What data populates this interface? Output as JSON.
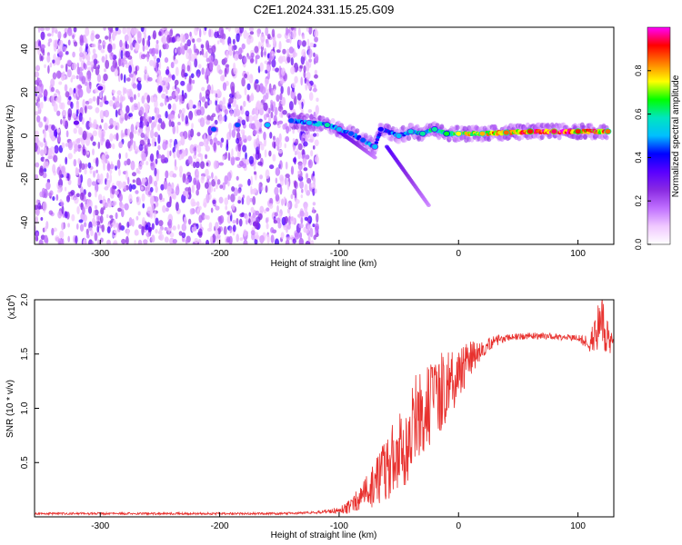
{
  "title": "C2E1.2024.331.15.25.G09",
  "chart_data": [
    {
      "type": "heatmap",
      "xlabel": "Height of straight line (km)",
      "ylabel": "Frequency (Hz)",
      "xlim": [
        -355,
        130
      ],
      "ylim": [
        -50,
        50
      ],
      "xticks": [
        -300,
        -200,
        -100,
        0,
        100
      ],
      "xtick_labels": [
        "-300",
        "-200",
        "-100",
        "0",
        "100"
      ],
      "yticks": [
        -40,
        -20,
        0,
        20,
        40
      ],
      "ytick_labels": [
        "-40",
        "-20",
        "0",
        "20",
        "40"
      ],
      "colorbar": {
        "label": "Normalized spectral amplitude",
        "range": [
          0,
          1
        ],
        "ticks": [
          0.0,
          0.2,
          0.4,
          0.6,
          0.8
        ],
        "tick_labels": [
          "0.0",
          "0.2",
          "0.4",
          "0.6",
          "0.8"
        ],
        "colors": [
          "#ffffff",
          "#f0c8ff",
          "#c070ff",
          "#8a2be2",
          "#5a00ff",
          "#0000ff",
          "#00bfff",
          "#00e5c0",
          "#00ff00",
          "#ffff00",
          "#ff8000",
          "#ff0000",
          "#ff00ff"
        ]
      },
      "ridge": [
        {
          "x": -320,
          "y": 6,
          "a": 0.3
        },
        {
          "x": -300,
          "y": 22,
          "a": 0.3
        },
        {
          "x": -205,
          "y": 3,
          "a": 0.45
        },
        {
          "x": -185,
          "y": 5,
          "a": 0.45
        },
        {
          "x": -160,
          "y": 5,
          "a": 0.5
        },
        {
          "x": -140,
          "y": 7,
          "a": 0.45
        },
        {
          "x": -125,
          "y": 6,
          "a": 0.5
        },
        {
          "x": -110,
          "y": 5,
          "a": 0.6
        },
        {
          "x": -100,
          "y": 3,
          "a": 0.5
        },
        {
          "x": -90,
          "y": 1,
          "a": 0.45
        },
        {
          "x": -80,
          "y": -2,
          "a": 0.45
        },
        {
          "x": -70,
          "y": -5,
          "a": 0.5
        },
        {
          "x": -65,
          "y": 3,
          "a": 0.4
        },
        {
          "x": -50,
          "y": 0,
          "a": 0.5
        },
        {
          "x": -40,
          "y": 2,
          "a": 0.55
        },
        {
          "x": -30,
          "y": 1,
          "a": 0.6
        },
        {
          "x": -20,
          "y": 3,
          "a": 0.6
        },
        {
          "x": -10,
          "y": 1,
          "a": 0.65
        },
        {
          "x": 0,
          "y": 1,
          "a": 0.75
        },
        {
          "x": 20,
          "y": 1,
          "a": 0.8
        },
        {
          "x": 40,
          "y": 1.5,
          "a": 0.85
        },
        {
          "x": 60,
          "y": 2,
          "a": 0.9
        },
        {
          "x": 80,
          "y": 2,
          "a": 0.95
        },
        {
          "x": 100,
          "y": 2,
          "a": 0.9
        },
        {
          "x": 125,
          "y": 2,
          "a": 0.85
        }
      ],
      "branches": [
        {
          "from": [
            -100,
            2
          ],
          "to": [
            -70,
            -10
          ]
        },
        {
          "from": [
            -60,
            -5
          ],
          "to": [
            -25,
            -32
          ]
        }
      ]
    },
    {
      "type": "line",
      "xlabel": "Height of straight line (km)",
      "ylabel": "SNR (10 * v/v)",
      "multiplier_label": "(x10",
      "multiplier_exp": "4",
      "xlim": [
        -355,
        130
      ],
      "ylim": [
        0,
        2.0
      ],
      "xticks": [
        -300,
        -200,
        -100,
        0,
        100
      ],
      "xtick_labels": [
        "-300",
        "-200",
        "-100",
        "0",
        "100"
      ],
      "yticks": [
        0.5,
        1.0,
        1.5,
        2.0
      ],
      "ytick_labels": [
        "0.5",
        "1.0",
        "1.5",
        "2.0"
      ],
      "color": "#e8312e",
      "series": [
        {
          "x": [
            -355,
            -300,
            -250,
            -200,
            -150,
            -120,
            -100,
            -90,
            -80,
            -70,
            -60,
            -50,
            -40,
            -30,
            -20,
            -10,
            0,
            10,
            20,
            30,
            40,
            60,
            80,
            100,
            110,
            115,
            120,
            125,
            130
          ],
          "y": [
            0.03,
            0.03,
            0.03,
            0.03,
            0.03,
            0.04,
            0.06,
            0.1,
            0.2,
            0.3,
            0.45,
            0.6,
            0.8,
            1.0,
            1.1,
            1.2,
            1.3,
            1.45,
            1.55,
            1.62,
            1.65,
            1.67,
            1.66,
            1.65,
            1.6,
            1.7,
            1.9,
            1.62,
            1.61
          ]
        }
      ],
      "noise": [
        {
          "x": -355,
          "amp": 0.01
        },
        {
          "x": -120,
          "amp": 0.01
        },
        {
          "x": -100,
          "amp": 0.03
        },
        {
          "x": -80,
          "amp": 0.12
        },
        {
          "x": -60,
          "amp": 0.3
        },
        {
          "x": -40,
          "amp": 0.45
        },
        {
          "x": -20,
          "amp": 0.4
        },
        {
          "x": 0,
          "amp": 0.25
        },
        {
          "x": 20,
          "amp": 0.08
        },
        {
          "x": 40,
          "amp": 0.03
        },
        {
          "x": 100,
          "amp": 0.03
        },
        {
          "x": 110,
          "amp": 0.08
        },
        {
          "x": 120,
          "amp": 0.3
        },
        {
          "x": 130,
          "amp": 0.03
        }
      ]
    }
  ]
}
